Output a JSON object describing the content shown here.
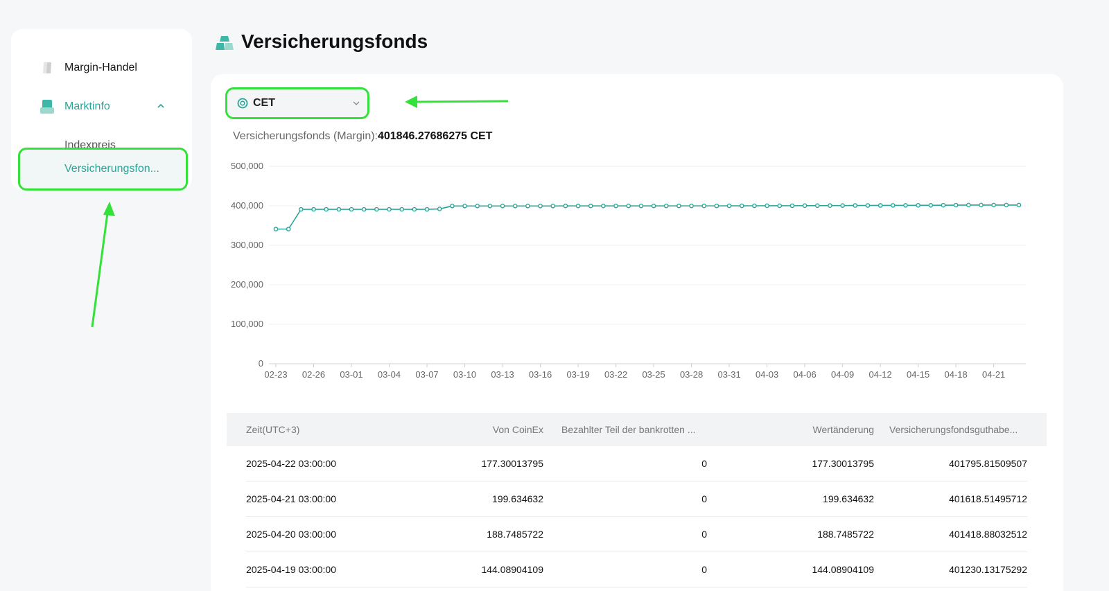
{
  "sidebar": {
    "items": [
      {
        "label": "Margin-Handel"
      },
      {
        "label": "Marktinfo"
      },
      {
        "label": "Indexpreis"
      },
      {
        "label": "Versicherungsfon..."
      }
    ]
  },
  "page": {
    "title": "Versicherungsfonds"
  },
  "selector": {
    "coin": "CET"
  },
  "fund": {
    "label": "Versicherungsfonds (Margin):",
    "value": "401846.27686275 CET"
  },
  "colors": {
    "accent": "#2ba597",
    "highlight": "#33e13a"
  },
  "chart_data": {
    "type": "line",
    "ylim": [
      0,
      500000
    ],
    "yticks": [
      "0",
      "100,000",
      "200,000",
      "300,000",
      "400,000",
      "500,000"
    ],
    "yticks_values": [
      0,
      100000,
      200000,
      300000,
      400000,
      500000
    ],
    "xticks": [
      "02-23",
      "02-26",
      "03-01",
      "03-04",
      "03-07",
      "03-10",
      "03-13",
      "03-16",
      "03-19",
      "03-22",
      "03-25",
      "03-28",
      "03-31",
      "04-03",
      "04-06",
      "04-09",
      "04-12",
      "04-15",
      "04-18",
      "04-21"
    ],
    "grid": true,
    "series": [
      {
        "values": [
          341000,
          341000,
          391000,
          391000,
          391000,
          391000,
          391000,
          391000,
          391000,
          391000,
          391000,
          391000,
          391000,
          392000,
          399500,
          399500,
          399500,
          399500,
          399500,
          399500,
          399500,
          399500,
          399500,
          399600,
          399600,
          399600,
          399600,
          399700,
          399700,
          399700,
          399700,
          399700,
          399800,
          399800,
          399800,
          399800,
          399900,
          399900,
          400000,
          400100,
          400100,
          400200,
          400300,
          400400,
          400500,
          400600,
          400700,
          400800,
          400900,
          401000,
          401100,
          401200,
          401230,
          401418,
          401618,
          401795,
          401846,
          401846,
          401846,
          401846
        ]
      }
    ]
  },
  "table": {
    "headers": [
      "Zeit(UTC+3)",
      "Von CoinEx",
      "Bezahlter Teil der bankrotten ...",
      "Wertänderung",
      "Versicherungsfondsguthabe..."
    ],
    "rows": [
      [
        "2025-04-22 03:00:00",
        "177.30013795",
        "0",
        "177.30013795",
        "401795.81509507"
      ],
      [
        "2025-04-21 03:00:00",
        "199.634632",
        "0",
        "199.634632",
        "401618.51495712"
      ],
      [
        "2025-04-20 03:00:00",
        "188.7485722",
        "0",
        "188.7485722",
        "401418.88032512"
      ],
      [
        "2025-04-19 03:00:00",
        "144.08904109",
        "0",
        "144.08904109",
        "401230.13175292"
      ]
    ]
  }
}
